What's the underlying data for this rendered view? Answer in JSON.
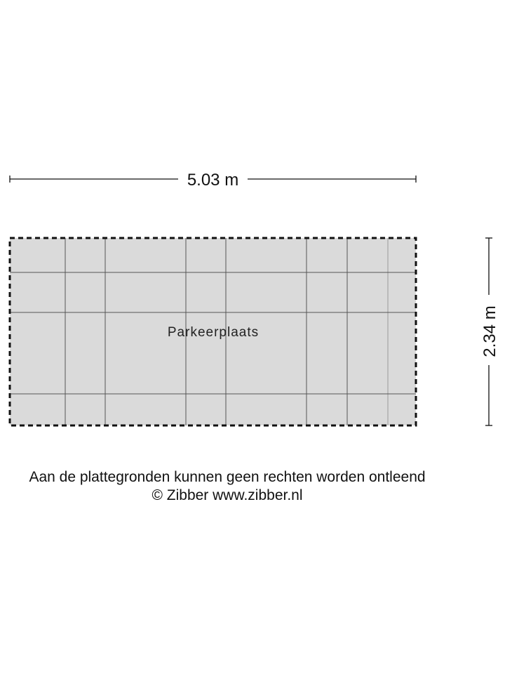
{
  "plan": {
    "width_label": "5.03 m",
    "height_label": "2.34 m",
    "room_label": "Parkeerplaats",
    "fill_color": "#dadada",
    "border_style": "dashed"
  },
  "footer": {
    "disclaimer": "Aan de plattegronden kunnen geen rechten worden ontleend",
    "copyright": "© Zibber www.zibber.nl"
  }
}
